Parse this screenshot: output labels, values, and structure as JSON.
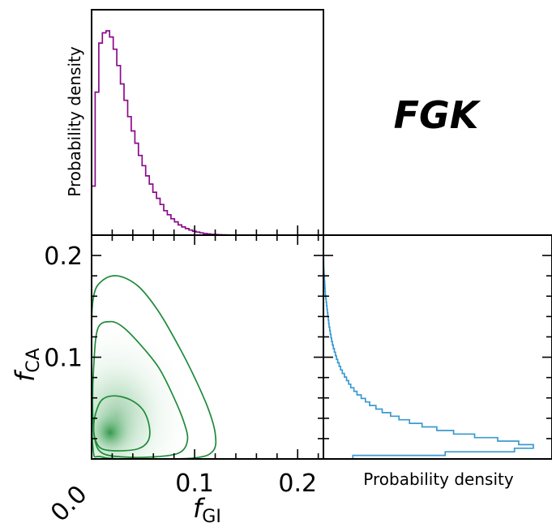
{
  "chart_data": {
    "type": "corner_plot",
    "title": "FGK",
    "colors": {
      "fgi_hist": "#8b0a8b",
      "fca_hist": "#3a9ad0",
      "contour": "#1e8a3a",
      "density": "#1e8a3a"
    },
    "x_axis": {
      "label_main": "f",
      "label_sub": "GI",
      "ticks": [
        0.1,
        0.2
      ],
      "tick_labels": [
        "0.1",
        "0.2"
      ],
      "origin_label": "0.0",
      "range": [
        0.0,
        0.225
      ]
    },
    "y_axis": {
      "label_main": "f",
      "label_sub": "CA",
      "ticks": [
        0.1,
        0.2
      ],
      "tick_labels": [
        "0.1",
        "0.2"
      ],
      "range": [
        0.0,
        0.22
      ]
    },
    "top_panel": {
      "type": "step_histogram",
      "ylabel": "Probability density",
      "bin_width": 0.0035,
      "x_start": 0.0,
      "values": [
        0.24,
        0.7,
        0.94,
        0.99,
        1.0,
        0.97,
        0.91,
        0.83,
        0.74,
        0.66,
        0.58,
        0.51,
        0.45,
        0.39,
        0.34,
        0.29,
        0.25,
        0.21,
        0.18,
        0.15,
        0.12,
        0.1,
        0.08,
        0.065,
        0.05,
        0.04,
        0.032,
        0.025,
        0.019,
        0.015,
        0.011,
        0.008,
        0.006,
        0.004,
        0.003,
        0.002,
        0.0015,
        0.001,
        0.0007,
        0.0005,
        0.0003,
        0.0002,
        0.0001,
        0.0,
        0.0,
        0.0,
        0.0,
        0.0,
        0.0,
        0.0,
        0.0,
        0.0,
        0.0,
        0.0,
        0.0,
        0.0,
        0.0,
        0.0,
        0.0,
        0.0,
        0.0,
        0.0,
        0.0,
        0.0
      ]
    },
    "right_panel": {
      "type": "step_histogram_horizontal",
      "xlabel": "Probability density",
      "bin_width": 0.0035,
      "y_start": 0.0,
      "values": [
        0.14,
        0.58,
        0.91,
        1.0,
        0.93,
        0.83,
        0.72,
        0.62,
        0.54,
        0.47,
        0.41,
        0.36,
        0.32,
        0.28,
        0.25,
        0.22,
        0.2,
        0.18,
        0.16,
        0.145,
        0.13,
        0.12,
        0.11,
        0.1,
        0.09,
        0.082,
        0.075,
        0.068,
        0.062,
        0.057,
        0.052,
        0.047,
        0.043,
        0.039,
        0.036,
        0.033,
        0.03,
        0.027,
        0.025,
        0.023,
        0.021,
        0.019,
        0.017,
        0.015,
        0.013,
        0.011,
        0.009,
        0.008,
        0.007,
        0.006,
        0.005,
        0.004,
        0.003,
        0.002,
        0.0015,
        0.001,
        0.0008,
        0.0005,
        0.0003,
        0.0002,
        0.0001,
        0.0
      ]
    },
    "joint_panel": {
      "type": "2d_density_with_contours",
      "peak": {
        "x": 0.018,
        "y": 0.026
      },
      "contours": [
        {
          "level": "inner",
          "points": [
            [
              0.004,
              0.018
            ],
            [
              0.01,
              0.01
            ],
            [
              0.025,
              0.008
            ],
            [
              0.045,
              0.01
            ],
            [
              0.055,
              0.018
            ],
            [
              0.056,
              0.032
            ],
            [
              0.05,
              0.048
            ],
            [
              0.038,
              0.058
            ],
            [
              0.022,
              0.062
            ],
            [
              0.01,
              0.058
            ],
            [
              0.004,
              0.045
            ],
            [
              0.002,
              0.03
            ]
          ]
        },
        {
          "level": "middle",
          "points": [
            [
              0.003,
              0.02
            ],
            [
              0.01,
              0.006
            ],
            [
              0.03,
              0.002
            ],
            [
              0.06,
              0.002
            ],
            [
              0.085,
              0.006
            ],
            [
              0.093,
              0.018
            ],
            [
              0.09,
              0.035
            ],
            [
              0.08,
              0.06
            ],
            [
              0.065,
              0.09
            ],
            [
              0.045,
              0.115
            ],
            [
              0.03,
              0.13
            ],
            [
              0.018,
              0.135
            ],
            [
              0.006,
              0.128
            ],
            [
              0.002,
              0.09
            ],
            [
              0.001,
              0.05
            ]
          ]
        },
        {
          "level": "outer",
          "points": [
            [
              0.001,
              0.015
            ],
            [
              0.01,
              0.002
            ],
            [
              0.05,
              0.0
            ],
            [
              0.1,
              0.001
            ],
            [
              0.118,
              0.008
            ],
            [
              0.12,
              0.025
            ],
            [
              0.113,
              0.05
            ],
            [
              0.1,
              0.08
            ],
            [
              0.085,
              0.11
            ],
            [
              0.065,
              0.145
            ],
            [
              0.045,
              0.17
            ],
            [
              0.025,
              0.18
            ],
            [
              0.01,
              0.175
            ],
            [
              0.002,
              0.16
            ],
            [
              0.0,
              0.12
            ]
          ]
        }
      ]
    }
  }
}
